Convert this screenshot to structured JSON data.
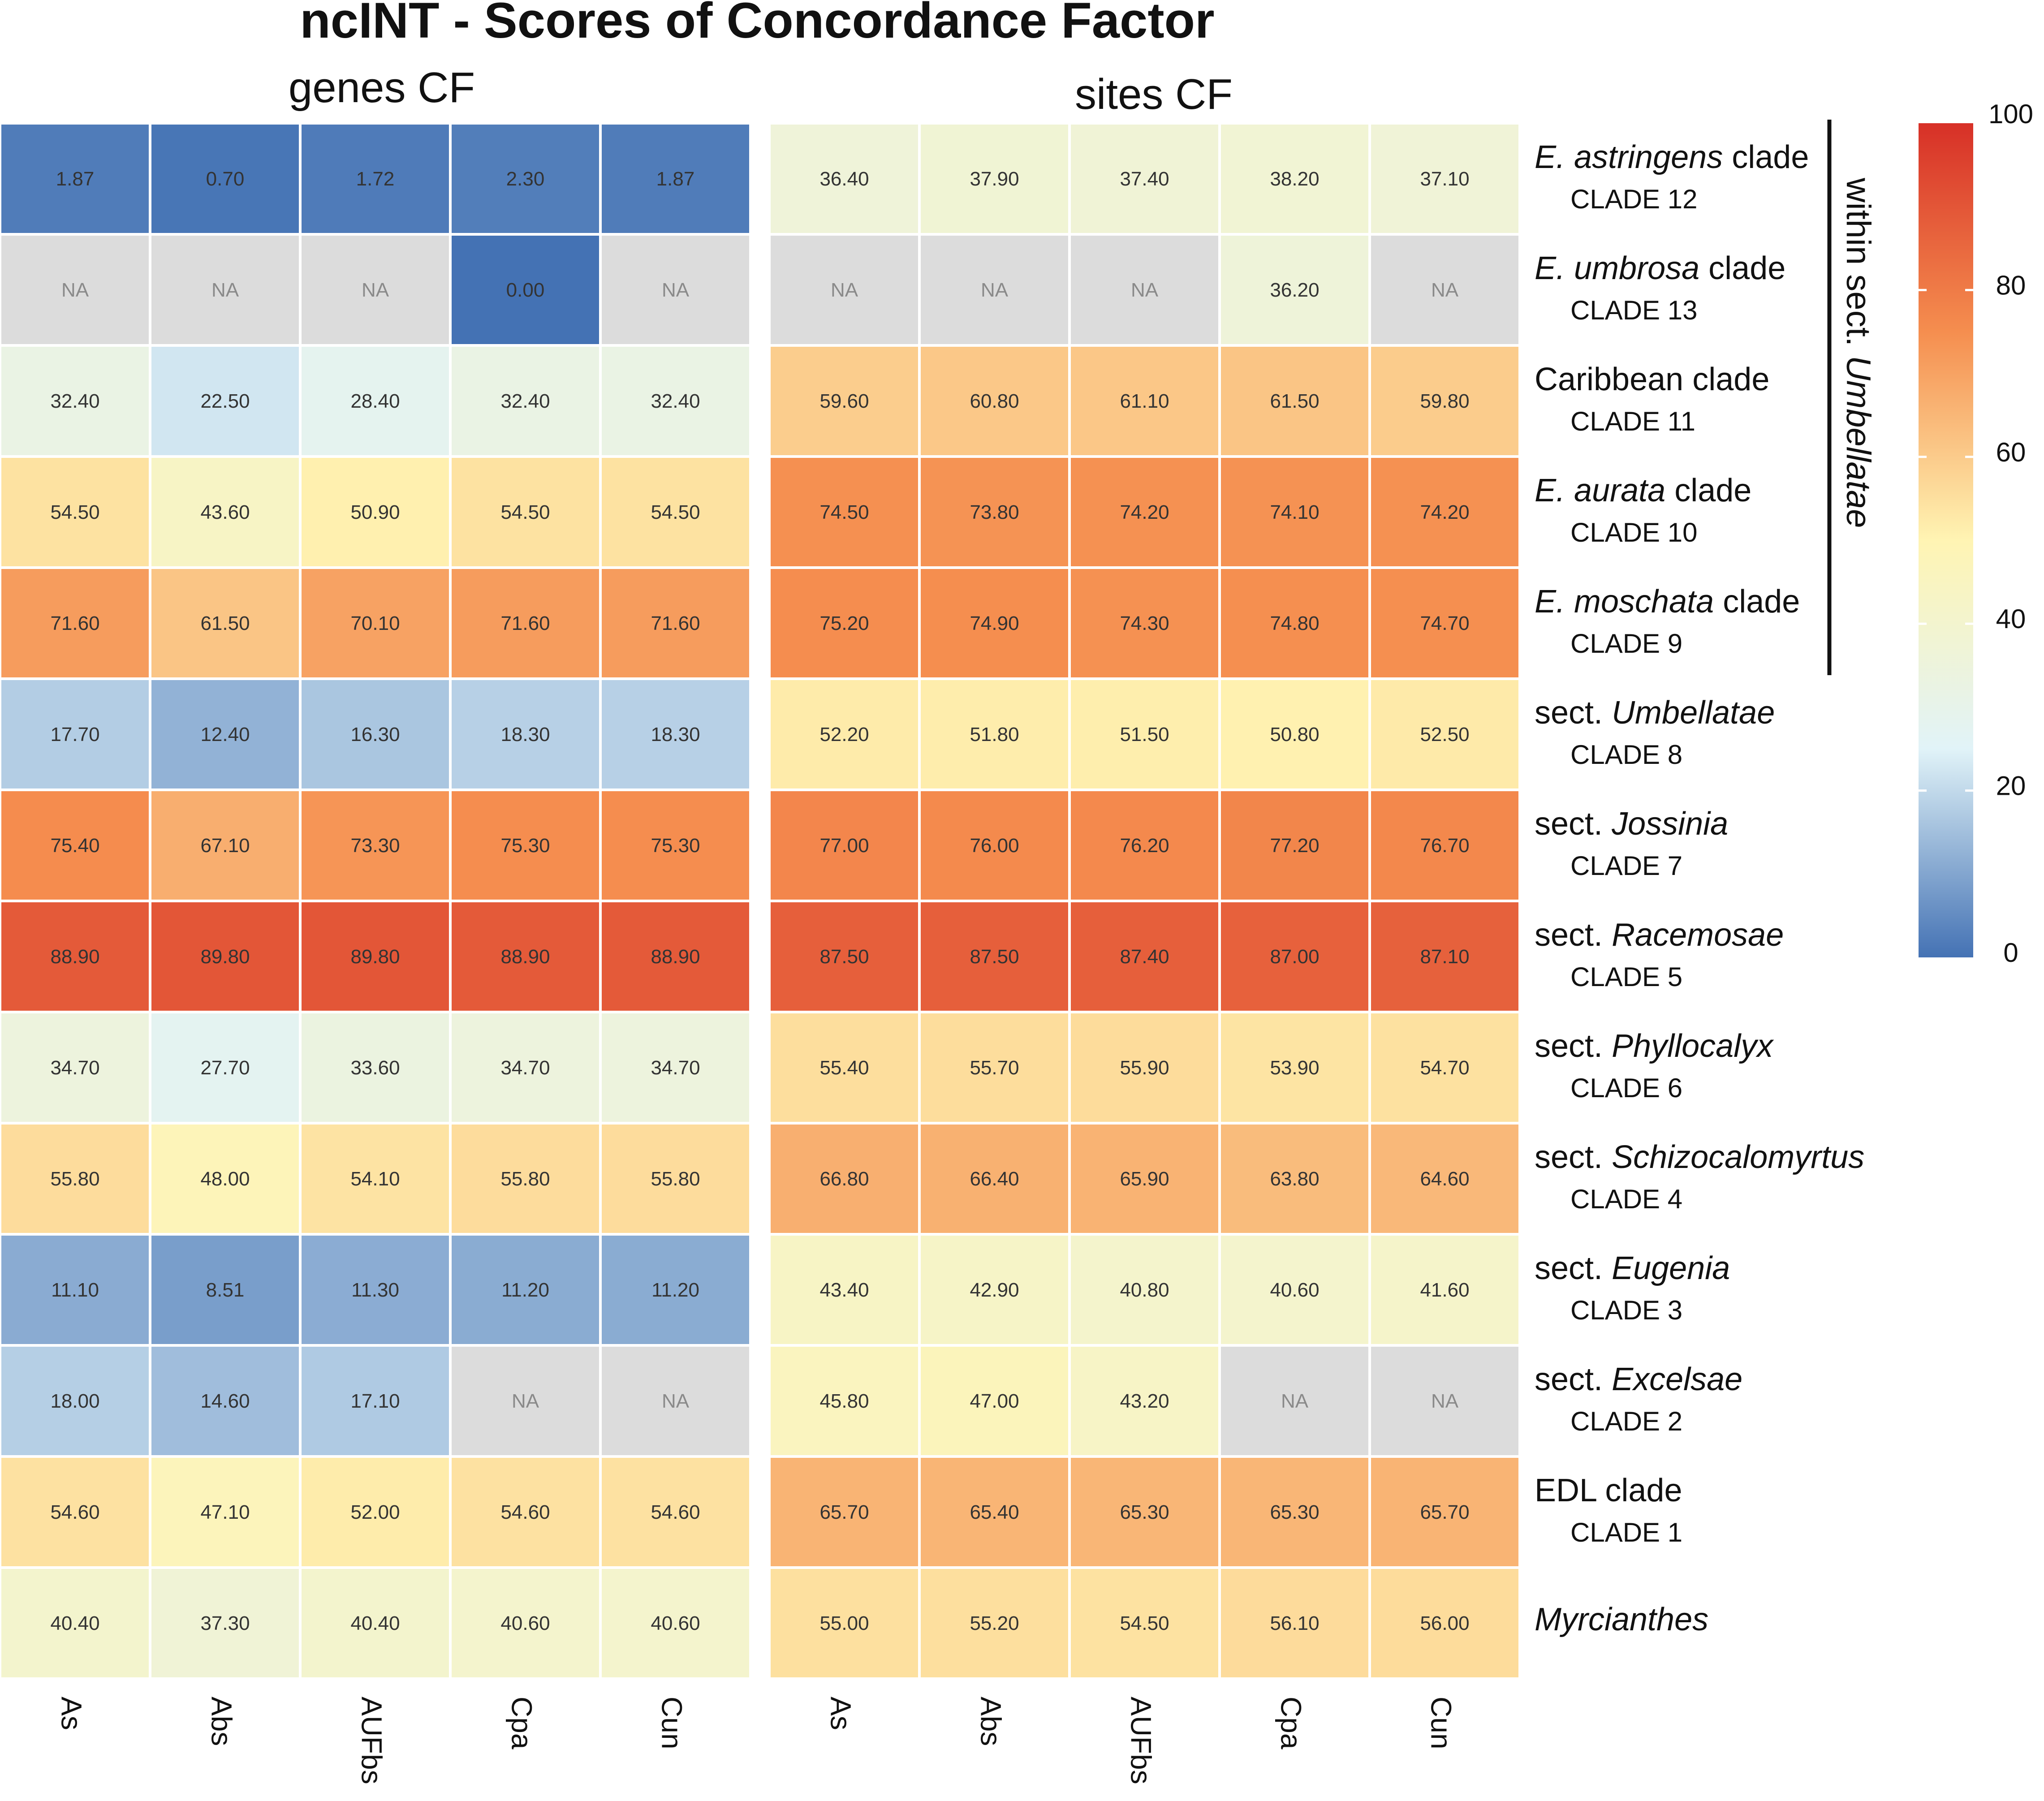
{
  "chart_data": {
    "type": "heatmap",
    "title": "ncINT - Scores of Concordance Factor",
    "panels": [
      {
        "name": "genes CF",
        "columns": [
          "As",
          "Abs",
          "AUFbs",
          "Cpa",
          "Cun"
        ],
        "values": [
          [
            1.87,
            0.7,
            1.72,
            2.3,
            1.87
          ],
          [
            null,
            null,
            null,
            0.0,
            null
          ],
          [
            32.4,
            22.5,
            28.4,
            32.4,
            32.4
          ],
          [
            54.5,
            43.6,
            50.9,
            54.5,
            54.5
          ],
          [
            71.6,
            61.5,
            70.1,
            71.6,
            71.6
          ],
          [
            17.7,
            12.4,
            16.3,
            18.3,
            18.3
          ],
          [
            75.4,
            67.1,
            73.3,
            75.3,
            75.3
          ],
          [
            88.9,
            89.8,
            89.8,
            88.9,
            88.9
          ],
          [
            34.7,
            27.7,
            33.6,
            34.7,
            34.7
          ],
          [
            55.8,
            48.0,
            54.1,
            55.8,
            55.8
          ],
          [
            11.1,
            8.51,
            11.3,
            11.2,
            11.2
          ],
          [
            18.0,
            14.6,
            17.1,
            null,
            null
          ],
          [
            54.6,
            47.1,
            52.0,
            54.6,
            54.6
          ],
          [
            40.4,
            37.3,
            40.4,
            40.6,
            40.6
          ]
        ]
      },
      {
        "name": "sites CF",
        "columns": [
          "As",
          "Abs",
          "AUFbs",
          "Cpa",
          "Cun"
        ],
        "values": [
          [
            36.4,
            37.9,
            37.4,
            38.2,
            37.1
          ],
          [
            null,
            null,
            null,
            36.2,
            null
          ],
          [
            59.6,
            60.8,
            61.1,
            61.5,
            59.8
          ],
          [
            74.5,
            73.8,
            74.2,
            74.1,
            74.2
          ],
          [
            75.2,
            74.9,
            74.3,
            74.8,
            74.7
          ],
          [
            52.2,
            51.8,
            51.5,
            50.8,
            52.5
          ],
          [
            77.0,
            76.0,
            76.2,
            77.2,
            76.7
          ],
          [
            87.5,
            87.5,
            87.4,
            87.0,
            87.1
          ],
          [
            55.4,
            55.7,
            55.9,
            53.9,
            54.7
          ],
          [
            66.8,
            66.4,
            65.9,
            63.8,
            64.6
          ],
          [
            43.4,
            42.9,
            40.8,
            40.6,
            41.6
          ],
          [
            45.8,
            47.0,
            43.2,
            null,
            null
          ],
          [
            65.7,
            65.4,
            65.3,
            65.3,
            65.7
          ],
          [
            55.0,
            55.2,
            54.5,
            56.1,
            56.0
          ]
        ]
      }
    ],
    "na_label": "NA",
    "rows": [
      {
        "prefix": "",
        "italic": "E. astringens",
        "suffix": " clade",
        "clade": "CLADE 12"
      },
      {
        "prefix": "",
        "italic": "E. umbrosa",
        "suffix": " clade",
        "clade": "CLADE 13"
      },
      {
        "prefix": "Caribbean clade",
        "italic": "",
        "suffix": "",
        "clade": "CLADE 11"
      },
      {
        "prefix": "",
        "italic": "E. aurata",
        "suffix": " clade",
        "clade": "CLADE 10"
      },
      {
        "prefix": "",
        "italic": "E. moschata",
        "suffix": " clade",
        "clade": "CLADE 9"
      },
      {
        "prefix": "sect. ",
        "italic": "Umbellatae",
        "suffix": "",
        "clade": "CLADE 8"
      },
      {
        "prefix": "sect. ",
        "italic": "Jossinia",
        "suffix": "",
        "clade": "CLADE 7"
      },
      {
        "prefix": "sect. ",
        "italic": "Racemosae",
        "suffix": "",
        "clade": "CLADE 5"
      },
      {
        "prefix": "sect. ",
        "italic": "Phyllocalyx",
        "suffix": "",
        "clade": "CLADE 6"
      },
      {
        "prefix": "sect. ",
        "italic": "Schizocalomyrtus",
        "suffix": "",
        "clade": "CLADE 4"
      },
      {
        "prefix": "sect. ",
        "italic": "Eugenia",
        "suffix": "",
        "clade": "CLADE 3"
      },
      {
        "prefix": "sect. ",
        "italic": "Excelsae",
        "suffix": "",
        "clade": "CLADE 2"
      },
      {
        "prefix": "EDL clade",
        "italic": "",
        "suffix": "",
        "clade": "CLADE 1"
      },
      {
        "prefix": "",
        "italic": "Myrcianthes",
        "suffix": "",
        "clade": ""
      }
    ],
    "bracket": {
      "prefix": "within sect. ",
      "italic": "Umbellatae",
      "from_row": 0,
      "to_row": 4
    },
    "colorbar": {
      "min": 0,
      "max": 100,
      "ticks": [
        0,
        20,
        40,
        60,
        80,
        100
      ],
      "stops": [
        "#4472b4",
        "#e1f3f8",
        "#fff4b3",
        "#f58e4f",
        "#d73027"
      ]
    },
    "na_color": "#dcdcdc"
  }
}
